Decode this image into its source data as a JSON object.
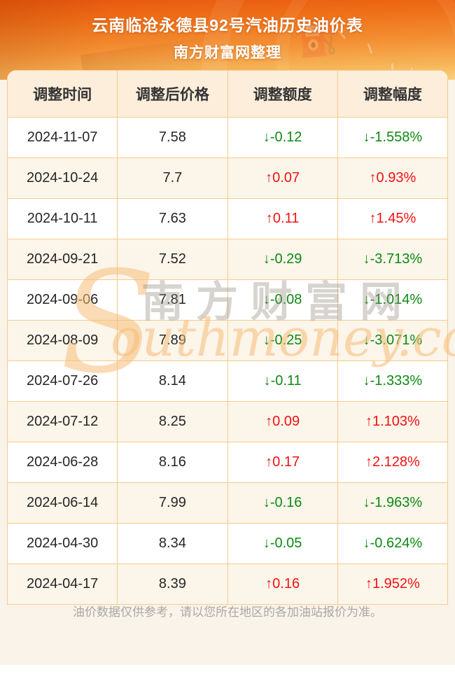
{
  "chart_data": {
    "type": "table",
    "title": "云南临沧永德县92号汽油历史油价表",
    "subtitle": "南方财富网整理",
    "columns": [
      "调整时间",
      "调整后价格",
      "调整额度",
      "调整幅度"
    ],
    "rows": [
      {
        "date": "2024-11-07",
        "price": "7.58",
        "change": "-0.12",
        "percent": "-1.558%",
        "direction": "down"
      },
      {
        "date": "2024-10-24",
        "price": "7.7",
        "change": "0.07",
        "percent": "0.93%",
        "direction": "up"
      },
      {
        "date": "2024-10-11",
        "price": "7.63",
        "change": "0.11",
        "percent": "1.45%",
        "direction": "up"
      },
      {
        "date": "2024-09-21",
        "price": "7.52",
        "change": "-0.29",
        "percent": "-3.713%",
        "direction": "down"
      },
      {
        "date": "2024-09-06",
        "price": "7.81",
        "change": "-0.08",
        "percent": "-1.014%",
        "direction": "down"
      },
      {
        "date": "2024-08-09",
        "price": "7.89",
        "change": "-0.25",
        "percent": "-3.071%",
        "direction": "down"
      },
      {
        "date": "2024-07-26",
        "price": "8.14",
        "change": "-0.11",
        "percent": "-1.333%",
        "direction": "down"
      },
      {
        "date": "2024-07-12",
        "price": "8.25",
        "change": "0.09",
        "percent": "1.103%",
        "direction": "up"
      },
      {
        "date": "2024-06-28",
        "price": "8.16",
        "change": "0.17",
        "percent": "2.128%",
        "direction": "up"
      },
      {
        "date": "2024-06-14",
        "price": "7.99",
        "change": "-0.16",
        "percent": "-1.963%",
        "direction": "down"
      },
      {
        "date": "2024-04-30",
        "price": "8.34",
        "change": "-0.05",
        "percent": "-0.624%",
        "direction": "down"
      },
      {
        "date": "2024-04-17",
        "price": "8.39",
        "change": "0.16",
        "percent": "1.952%",
        "direction": "up"
      }
    ],
    "up_arrow": "↑",
    "down_arrow": "↓",
    "up_color": "#f21212",
    "down_color": "#0d8a12",
    "legend_position": "none",
    "grid": true
  },
  "watermark": {
    "swoosh": "S",
    "cn": "南方财富网",
    "en": "outhmoney.com"
  },
  "footer": {
    "disclaimer": "油价数据仅供参考，请以您所在地区的各加油站报价为准。"
  },
  "colors": {
    "hero_top": "#e8560e",
    "hero_bottom": "#fbd07d",
    "page_background": "#faf3e9",
    "header_row_background": "#fceedb",
    "alt_row_background": "#fbf5ea",
    "grid_line": "#f5cb8b"
  }
}
